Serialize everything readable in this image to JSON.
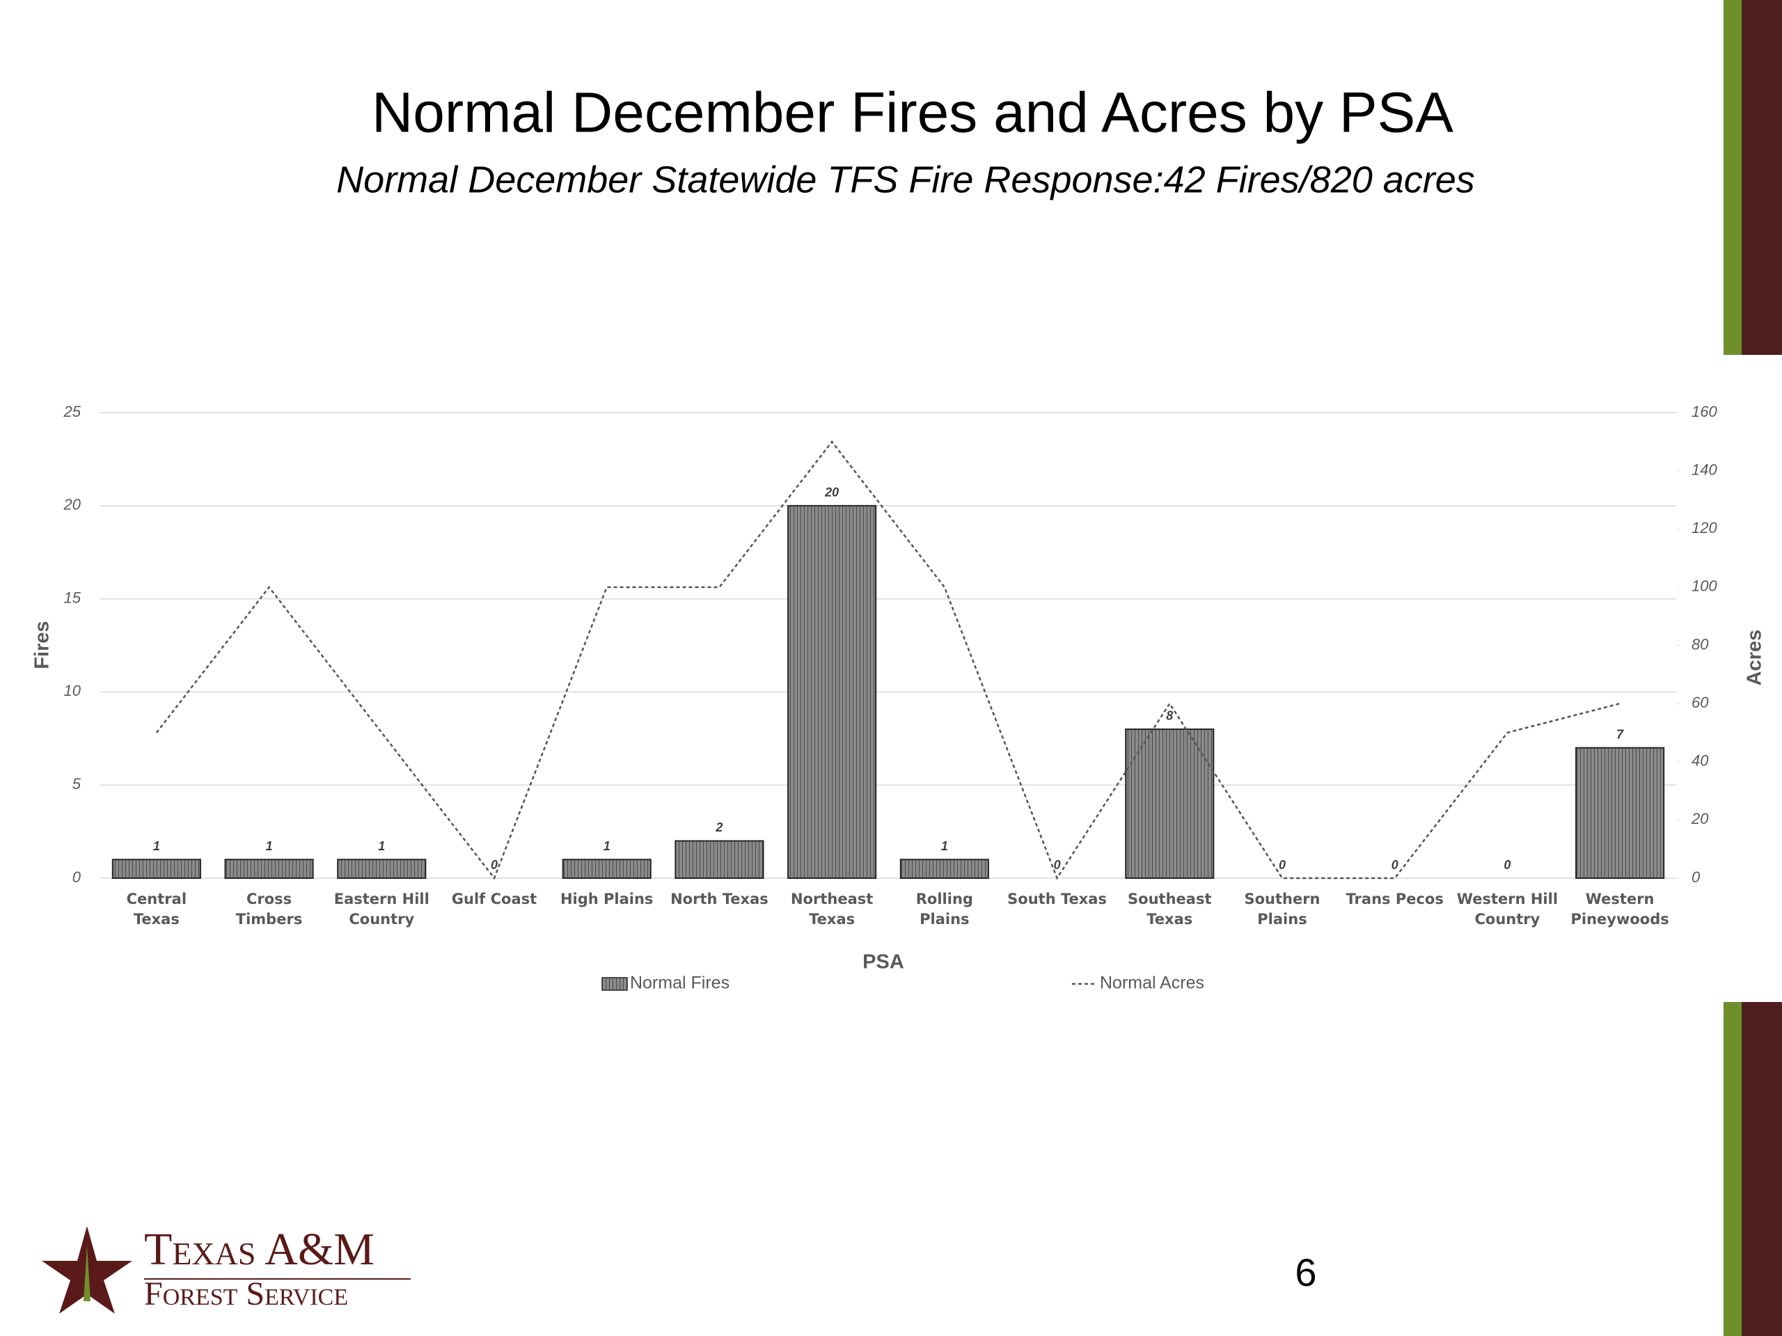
{
  "chart_data": {
    "type": "bar",
    "title": "Normal December Fires and Acres by PSA",
    "subtitle": "Normal December Statewide TFS Fire Response:42 Fires/820 acres",
    "x_label": "PSA",
    "y_label": "Fires",
    "y2_label": "Acres",
    "categories": [
      "Central Texas",
      "Cross Timbers",
      "Eastern Hill Country",
      "Gulf Coast",
      "High Plains",
      "North Texas",
      "Northeast Texas",
      "Rolling Plains",
      "South Texas",
      "Southeast Texas",
      "Southern Plains",
      "Trans Pecos",
      "Western Hill Country",
      "Western Pineywoods"
    ],
    "series": [
      {
        "name": "Normal Fires",
        "type": "bar",
        "color": "#7a7a7a",
        "values": [
          1,
          1,
          1,
          0,
          1,
          2,
          20,
          1,
          0,
          8,
          0,
          0,
          0,
          7
        ]
      },
      {
        "name": "Normal Acres",
        "type": "line",
        "axis": "y2",
        "color": "#555555",
        "values": [
          50,
          100,
          50,
          0,
          100,
          100,
          150,
          100,
          0,
          60,
          0,
          0,
          50,
          60
        ]
      }
    ],
    "ylim": [
      0,
      25
    ],
    "yticks": [
      0,
      5,
      10,
      15,
      20,
      25
    ],
    "y2lim": [
      0,
      160
    ],
    "y2ticks": [
      0,
      20,
      40,
      60,
      80,
      100,
      120,
      140,
      160
    ],
    "grid": true,
    "legend": "bottom"
  },
  "footer": {
    "logo_line1": "Texas A&M",
    "logo_line2": "Forest Service",
    "page_number": 6
  }
}
